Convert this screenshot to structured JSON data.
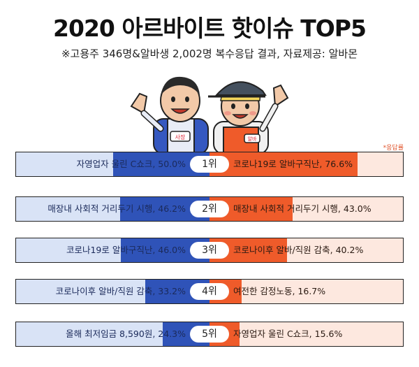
{
  "title": "2020 아르바이트 핫이슈 TOP5",
  "subtitle": "※고용주 346명&알바생 2,002명 복수응답 결과, 자료제공: 알바몬",
  "note": "*응답률",
  "illustration": {
    "left_badge": "사장",
    "right_badge": "알바"
  },
  "colors": {
    "employer_fill": "#2f53b8",
    "employer_bg": "#d9e3f6",
    "worker_fill": "#ef5b2a",
    "worker_bg": "#fde8df"
  },
  "chart_data": {
    "type": "bar",
    "orientation": "diverging-horizontal",
    "unit": "%",
    "xlim": [
      0,
      100
    ],
    "categories": [
      "1위",
      "2위",
      "3위",
      "4위",
      "5위"
    ],
    "series": [
      {
        "name": "",
        "labels": [
          "자영업자 울린 C쇼크, 50.0%",
          "매장내 사회적 거리두기 시행, 46.2%",
          "코로나19로 알바구직난, 46.0%",
          "코로나이후 알바/직원 감축, 33.2%",
          "올해 최저임금 8,590원, 24.3%"
        ],
        "values": [
          50.0,
          46.2,
          46.0,
          33.2,
          24.3
        ]
      },
      {
        "name": "",
        "labels": [
          "코로나19로 알바구직난, 76.6%",
          "매장내 사회적 거리두기 시행, 43.0%",
          "코로나이후 알바/직원 감축, 40.2%",
          "여전한 감정노동, 16.7%",
          "자영업자 울린 C쇼크, 15.6%"
        ],
        "values": [
          76.6,
          43.0,
          40.2,
          16.7,
          15.6
        ]
      }
    ]
  }
}
